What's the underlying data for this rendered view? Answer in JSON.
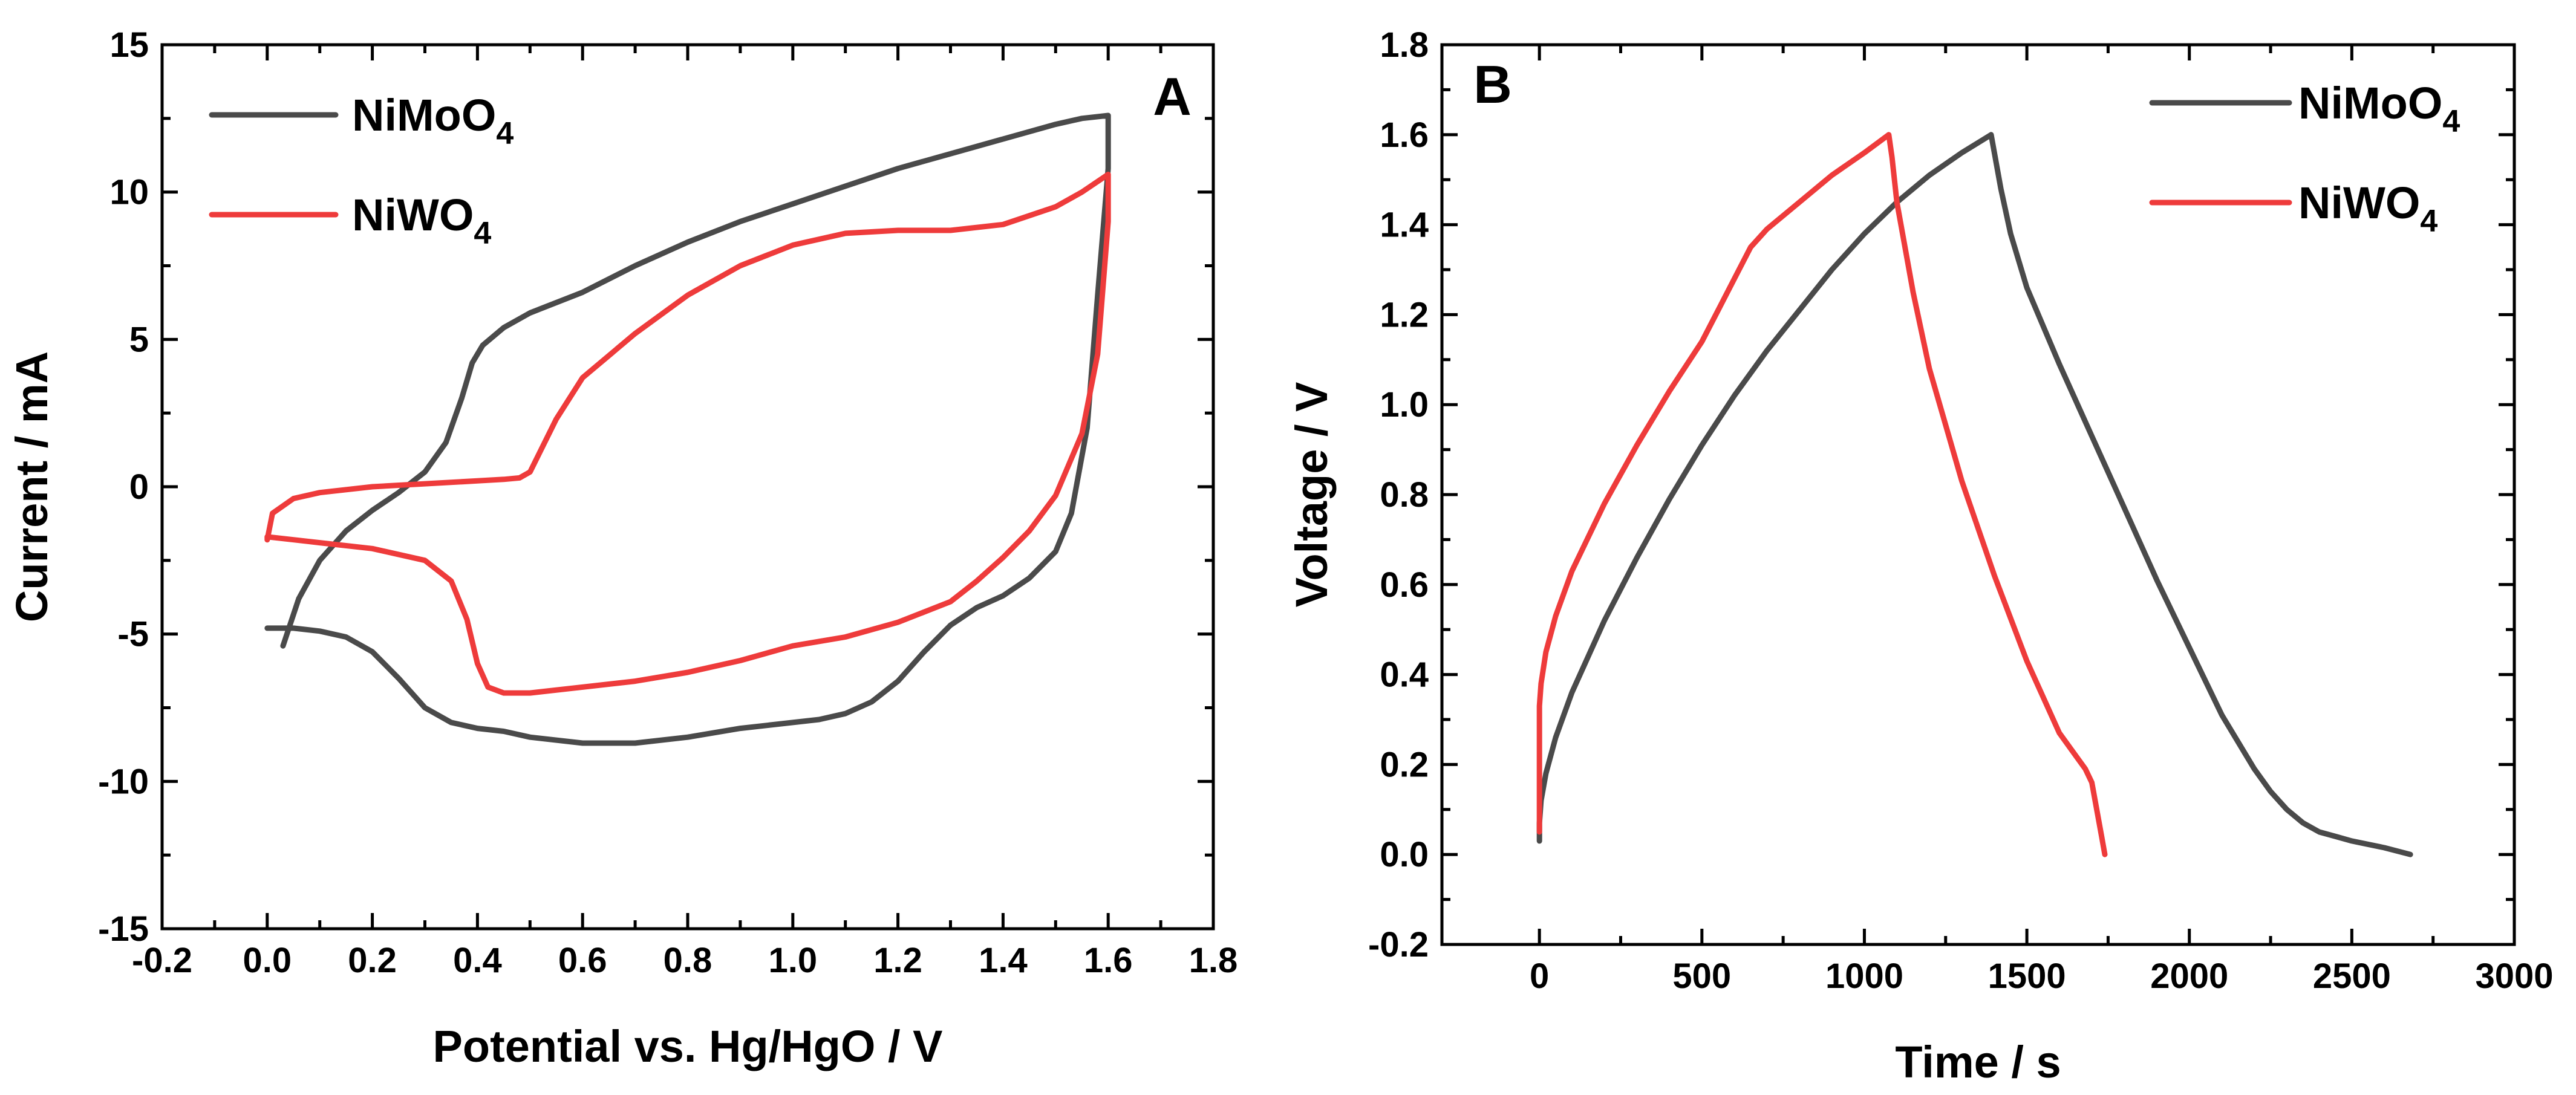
{
  "chart_data": [
    {
      "id": "A",
      "type": "line",
      "panel_label": "A",
      "xlabel": "Potential vs. Hg/HgO / V",
      "ylabel": "Current / mA",
      "xlim": [
        -0.2,
        1.8
      ],
      "ylim": [
        -15,
        15
      ],
      "xticks": [
        -0.2,
        0.0,
        0.2,
        0.4,
        0.6,
        0.8,
        1.0,
        1.2,
        1.4,
        1.6,
        1.8
      ],
      "xtick_labels": [
        "-0.2",
        "0.0",
        "0.2",
        "0.4",
        "0.6",
        "0.8",
        "1.0",
        "1.2",
        "1.4",
        "1.6",
        "1.8"
      ],
      "yticks": [
        -15,
        -10,
        -5,
        0,
        5,
        10,
        15
      ],
      "ytick_labels": [
        "-15",
        "-10",
        "-5",
        "0",
        "5",
        "10",
        "15"
      ],
      "legend_position": "top-left",
      "series": [
        {
          "name": "NiMoO4",
          "label_main": "NiMoO",
          "label_sub": "4",
          "color": "#4a4a4a",
          "x": [
            0.03,
            0.06,
            0.1,
            0.15,
            0.2,
            0.25,
            0.3,
            0.34,
            0.37,
            0.39,
            0.41,
            0.45,
            0.5,
            0.6,
            0.7,
            0.8,
            0.9,
            1.0,
            1.1,
            1.2,
            1.3,
            1.4,
            1.5,
            1.55,
            1.6,
            1.6,
            1.58,
            1.56,
            1.53,
            1.5,
            1.45,
            1.4,
            1.35,
            1.3,
            1.25,
            1.2,
            1.15,
            1.1,
            1.05,
            1.0,
            0.9,
            0.8,
            0.7,
            0.6,
            0.5,
            0.45,
            0.4,
            0.35,
            0.3,
            0.25,
            0.2,
            0.15,
            0.1,
            0.05,
            0.0
          ],
          "y": [
            -5.4,
            -3.8,
            -2.5,
            -1.5,
            -0.8,
            -0.2,
            0.5,
            1.5,
            3.0,
            4.2,
            4.8,
            5.4,
            5.9,
            6.6,
            7.5,
            8.3,
            9.0,
            9.6,
            10.2,
            10.8,
            11.3,
            11.8,
            12.3,
            12.5,
            12.6,
            10.8,
            6.5,
            2.0,
            -0.9,
            -2.2,
            -3.1,
            -3.7,
            -4.1,
            -4.7,
            -5.6,
            -6.6,
            -7.3,
            -7.7,
            -7.9,
            -8.0,
            -8.2,
            -8.5,
            -8.7,
            -8.7,
            -8.5,
            -8.3,
            -8.2,
            -8.0,
            -7.5,
            -6.5,
            -5.6,
            -5.1,
            -4.9,
            -4.8,
            -4.8
          ]
        },
        {
          "name": "NiWO4",
          "label_main": "NiWO",
          "label_sub": "4",
          "color": "#ee3b3b",
          "x": [
            0.0,
            0.01,
            0.05,
            0.1,
            0.2,
            0.3,
            0.4,
            0.45,
            0.48,
            0.5,
            0.55,
            0.6,
            0.7,
            0.8,
            0.9,
            1.0,
            1.1,
            1.2,
            1.3,
            1.4,
            1.5,
            1.55,
            1.6,
            1.6,
            1.58,
            1.55,
            1.5,
            1.45,
            1.4,
            1.35,
            1.3,
            1.2,
            1.1,
            1.0,
            0.9,
            0.8,
            0.7,
            0.6,
            0.5,
            0.45,
            0.42,
            0.4,
            0.38,
            0.35,
            0.3,
            0.2,
            0.1,
            0.05,
            0.0,
            0.0
          ],
          "y": [
            -1.8,
            -0.9,
            -0.4,
            -0.2,
            0.0,
            0.1,
            0.2,
            0.25,
            0.3,
            0.5,
            2.3,
            3.7,
            5.2,
            6.5,
            7.5,
            8.2,
            8.6,
            8.7,
            8.7,
            8.9,
            9.5,
            10.0,
            10.6,
            9.0,
            4.5,
            1.8,
            -0.3,
            -1.5,
            -2.4,
            -3.2,
            -3.9,
            -4.6,
            -5.1,
            -5.4,
            -5.9,
            -6.3,
            -6.6,
            -6.8,
            -7.0,
            -7.0,
            -6.8,
            -6.0,
            -4.5,
            -3.2,
            -2.5,
            -2.1,
            -1.9,
            -1.8,
            -1.7,
            -1.8
          ]
        }
      ]
    },
    {
      "id": "B",
      "type": "line",
      "panel_label": "B",
      "xlabel": "Time / s",
      "ylabel": "Voltage / V",
      "xlim": [
        -300,
        3000
      ],
      "ylim": [
        -0.2,
        1.8
      ],
      "xticks": [
        0,
        500,
        1000,
        1500,
        2000,
        2500,
        3000
      ],
      "xtick_labels": [
        "0",
        "500",
        "1000",
        "1500",
        "2000",
        "2500",
        "3000"
      ],
      "yticks": [
        -0.2,
        0.0,
        0.2,
        0.4,
        0.6,
        0.8,
        1.0,
        1.2,
        1.4,
        1.6,
        1.8
      ],
      "ytick_labels": [
        "-0.2",
        "0.0",
        "0.2",
        "0.4",
        "0.6",
        "0.8",
        "1.0",
        "1.2",
        "1.4",
        "1.6",
        "1.8"
      ],
      "legend_position": "top-right",
      "series": [
        {
          "name": "NiMoO4",
          "label_main": "NiMoO",
          "label_sub": "4",
          "color": "#4a4a4a",
          "x": [
            0,
            0,
            5,
            20,
            50,
            100,
            200,
            300,
            400,
            500,
            600,
            700,
            800,
            900,
            1000,
            1100,
            1200,
            1300,
            1390,
            1420,
            1450,
            1500,
            1600,
            1700,
            1800,
            1900,
            2000,
            2100,
            2200,
            2250,
            2300,
            2350,
            2400,
            2450,
            2500,
            2600,
            2680
          ],
          "y": [
            0.03,
            0.07,
            0.12,
            0.18,
            0.26,
            0.36,
            0.52,
            0.66,
            0.79,
            0.91,
            1.02,
            1.12,
            1.21,
            1.3,
            1.38,
            1.45,
            1.51,
            1.56,
            1.6,
            1.48,
            1.38,
            1.26,
            1.09,
            0.93,
            0.77,
            0.61,
            0.46,
            0.31,
            0.19,
            0.14,
            0.1,
            0.07,
            0.05,
            0.04,
            0.03,
            0.015,
            0.0
          ]
        },
        {
          "name": "NiWO4",
          "label_main": "NiWO",
          "label_sub": "4",
          "color": "#ee3b3b",
          "x": [
            0,
            0,
            5,
            20,
            50,
            100,
            200,
            300,
            400,
            500,
            550,
            600,
            650,
            700,
            800,
            900,
            1000,
            1075,
            1085,
            1100,
            1150,
            1200,
            1300,
            1400,
            1500,
            1600,
            1680,
            1700,
            1710,
            1720,
            1730,
            1740
          ],
          "y": [
            0.05,
            0.33,
            0.38,
            0.45,
            0.53,
            0.63,
            0.78,
            0.91,
            1.03,
            1.14,
            1.21,
            1.28,
            1.35,
            1.39,
            1.45,
            1.51,
            1.56,
            1.6,
            1.55,
            1.45,
            1.25,
            1.08,
            0.83,
            0.62,
            0.43,
            0.27,
            0.19,
            0.16,
            0.12,
            0.08,
            0.04,
            0.0
          ]
        }
      ]
    }
  ]
}
